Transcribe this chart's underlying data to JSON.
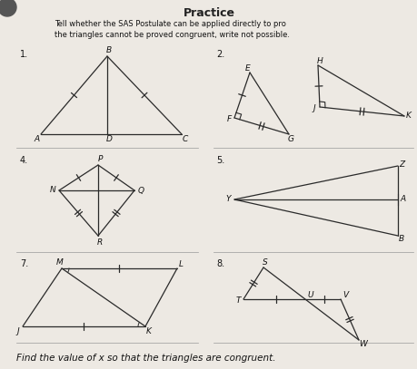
{
  "bg_color": "#ede9e3",
  "lc": "#2a2a2a",
  "lw": 0.9,
  "fs_num": 7.0,
  "fs_lbl": 6.5,
  "fs_header": 6.0,
  "fs_footer": 7.5,
  "header": "Tell whether the SAS Postulate can be applied directly to pro\nthe triangles cannot be proved congruent, write not possible.",
  "footer": "Find the value of x so that the triangles are congruent.",
  "title": "Practice"
}
